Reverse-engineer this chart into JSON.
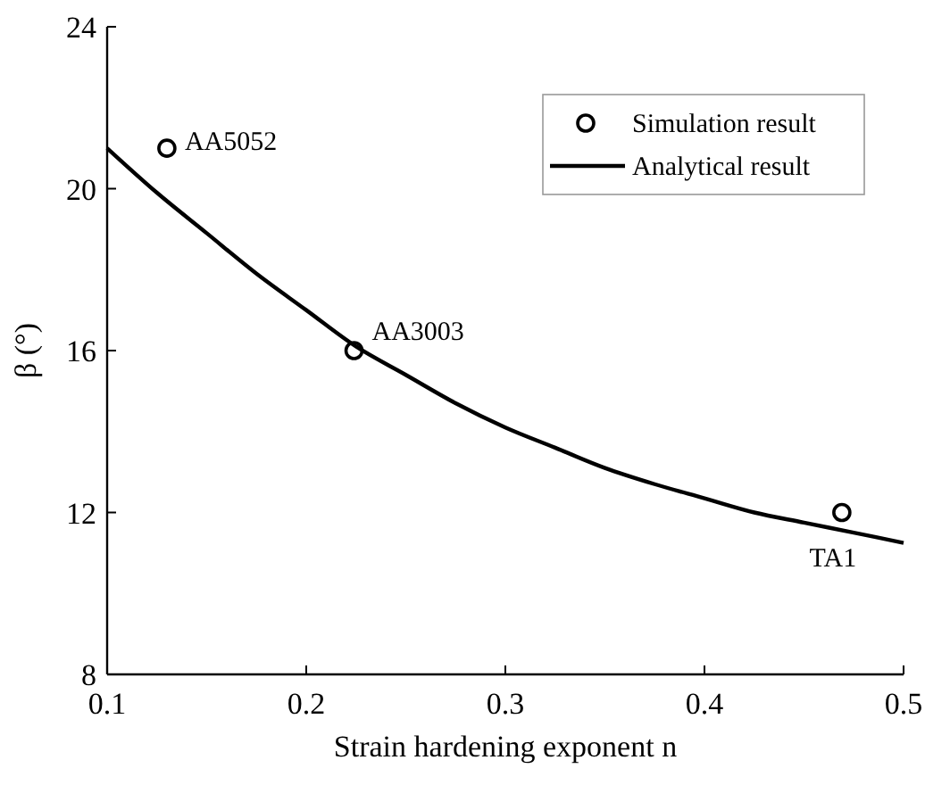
{
  "chart_data": {
    "type": "scatter",
    "xlabel": "Strain hardening exponent n",
    "ylabel": "β (°)",
    "xlim": [
      0.1,
      0.5
    ],
    "ylim": [
      8,
      24
    ],
    "xticks": [
      {
        "value": 0.1,
        "label": "0.1"
      },
      {
        "value": 0.2,
        "label": "0.2"
      },
      {
        "value": 0.3,
        "label": "0.3"
      },
      {
        "value": 0.4,
        "label": "0.4"
      },
      {
        "value": 0.5,
        "label": "0.5"
      }
    ],
    "yticks": [
      8,
      12,
      16,
      20,
      24
    ],
    "grid": false,
    "legend": "top right",
    "series": [
      {
        "name": "Simulation result",
        "color": "#000000",
        "marker": "circle",
        "x": [
          0.13,
          0.224,
          0.469
        ],
        "values": [
          21,
          16,
          12
        ]
      },
      {
        "name": "Analytical result",
        "type": "line",
        "color": "#000000",
        "line_style": "solid",
        "marker": "none",
        "x": [
          0.1,
          0.125,
          0.15,
          0.175,
          0.2,
          0.225,
          0.25,
          0.275,
          0.3,
          0.325,
          0.35,
          0.375,
          0.4,
          0.425,
          0.45,
          0.475,
          0.5
        ],
        "values": [
          21,
          19.9,
          18.9,
          17.9,
          17.0,
          16.1,
          15.4,
          14.7,
          14.1,
          13.6,
          13.1,
          12.7,
          12.35,
          12.0,
          11.75,
          11.5,
          11.25
        ]
      }
    ],
    "annotations": [
      {
        "text": "AA5052",
        "x": 0.13,
        "y": 21
      },
      {
        "text": "AA3003",
        "x": 0.224,
        "y": 16
      },
      {
        "text": "TA1",
        "x": 0.469,
        "y": 12
      }
    ]
  }
}
